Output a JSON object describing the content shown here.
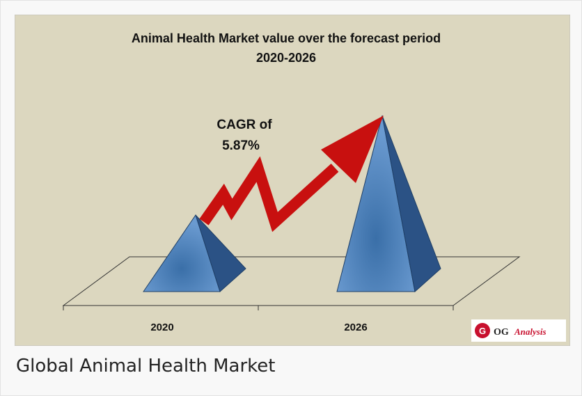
{
  "figure": {
    "title_lines": [
      "Animal Health Market value over the forecast period",
      "2020-2026"
    ],
    "annotation_lines": [
      "CAGR of",
      "5.87%"
    ],
    "categories": [
      "2020",
      "2026"
    ],
    "logo": {
      "mark": "G",
      "text": "OG",
      "text2": "Analysis"
    }
  },
  "caption": "Global Animal Health Market"
}
